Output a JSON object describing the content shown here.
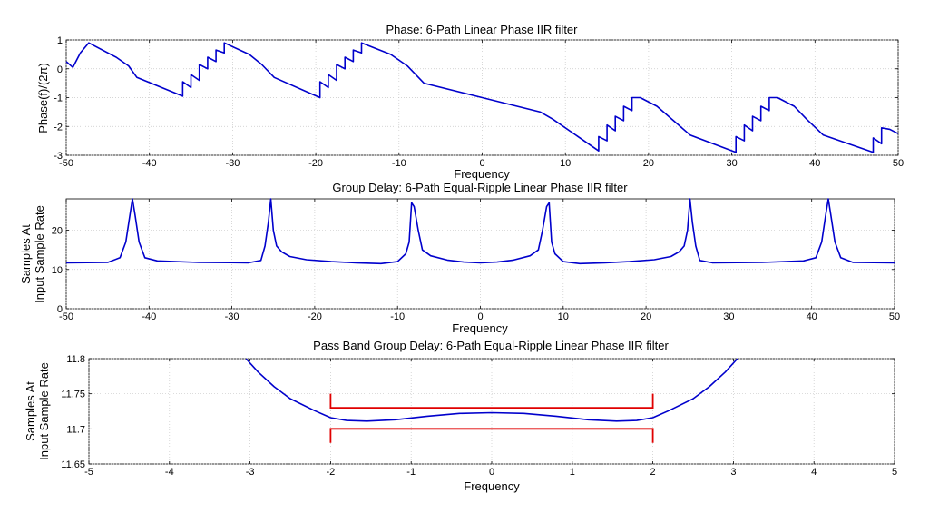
{
  "colors": {
    "curve": "#0000cc",
    "annotation": "#e00000",
    "grid": "#c8c8c8"
  },
  "chart_data": [
    {
      "type": "line",
      "title": "Phase: 6-Path Linear Phase IIR filter",
      "xlabel": "Frequency",
      "ylabel": "Phase(f)/(2π)",
      "xlim": [
        -50,
        50
      ],
      "ylim": [
        -3,
        1
      ],
      "xticks": [
        -50,
        -40,
        -30,
        -20,
        -10,
        0,
        10,
        20,
        30,
        40,
        50
      ],
      "yticks": [
        1,
        0,
        -1,
        -2,
        -3
      ],
      "grid": true,
      "series": [
        {
          "name": "phase",
          "x": [
            -50,
            -49.2,
            -48.3,
            -48.3,
            -47.3,
            -47.3,
            -44,
            -42.5,
            -41.5,
            -36,
            -36,
            -35,
            -35,
            -34,
            -34,
            -33,
            -33,
            -32,
            -32,
            -31,
            -31,
            -28,
            -26.5,
            -25,
            -19.5,
            -19.5,
            -18.5,
            -18.5,
            -17.5,
            -17.5,
            -16.5,
            -16.5,
            -15.5,
            -15.5,
            -14.5,
            -14.5,
            -11,
            -9,
            -7,
            0,
            7,
            8.5,
            14,
            14,
            15,
            15,
            16,
            16,
            17,
            17,
            18,
            18,
            19,
            19,
            21,
            23,
            25,
            30.5,
            30.5,
            31.5,
            31.5,
            32.5,
            32.5,
            33.5,
            33.5,
            34.5,
            34.5,
            35.5,
            35.5,
            37.5,
            39,
            41,
            47,
            47,
            48,
            48,
            49,
            50
          ],
          "y": [
            0.25,
            0.05,
            0.55,
            0.55,
            0.9,
            0.9,
            0.4,
            0.1,
            -0.3,
            -0.95,
            -0.45,
            -0.65,
            -0.2,
            -0.4,
            0.15,
            0.0,
            0.4,
            0.25,
            0.65,
            0.55,
            0.9,
            0.5,
            0.15,
            -0.3,
            -1.0,
            -0.45,
            -0.65,
            -0.2,
            -0.4,
            0.15,
            0.0,
            0.4,
            0.25,
            0.65,
            0.55,
            0.9,
            0.5,
            0.1,
            -0.5,
            -1.0,
            -1.5,
            -1.75,
            -2.85,
            -2.35,
            -2.5,
            -1.95,
            -2.15,
            -1.65,
            -1.8,
            -1.3,
            -1.45,
            -1.0,
            -1.0,
            -1.0,
            -1.3,
            -1.8,
            -2.3,
            -2.9,
            -2.35,
            -2.5,
            -1.95,
            -2.15,
            -1.65,
            -1.8,
            -1.3,
            -1.45,
            -1.0,
            -1.0,
            -1.0,
            -1.3,
            -1.75,
            -2.3,
            -2.9,
            -2.4,
            -2.6,
            -2.05,
            -2.1,
            -2.25
          ]
        }
      ]
    },
    {
      "type": "line",
      "title": "Group Delay: 6-Path Equal-Ripple Linear Phase IIR filter",
      "xlabel": "Frequency",
      "ylabel": [
        "Samples At",
        "Input Sample Rate"
      ],
      "xlim": [
        -50,
        50
      ],
      "ylim": [
        0,
        28
      ],
      "xticks": [
        -50,
        -40,
        -30,
        -20,
        -10,
        0,
        10,
        20,
        30,
        40,
        50
      ],
      "yticks": [
        0,
        10,
        20
      ],
      "grid": true,
      "series": [
        {
          "name": "group delay",
          "x": [
            -50,
            -45,
            -43.5,
            -42.8,
            -42.3,
            -42.0,
            -41.7,
            -41.2,
            -40.5,
            -39,
            -34,
            -28,
            -26.5,
            -26.0,
            -25.6,
            -25.3,
            -25.0,
            -24.6,
            -24.0,
            -23,
            -21,
            -18,
            -15,
            -12,
            -10,
            -9,
            -8.6,
            -8.3,
            -8.0,
            -7.5,
            -7.0,
            -6,
            -4,
            -2,
            0,
            2,
            4,
            6,
            7.0,
            7.5,
            8.0,
            8.3,
            8.6,
            9,
            10,
            12,
            15,
            18,
            21,
            23,
            24.0,
            24.6,
            25.0,
            25.3,
            25.6,
            26.0,
            26.5,
            28,
            34,
            39,
            40.5,
            41.2,
            41.7,
            42.0,
            42.3,
            42.8,
            43.5,
            45,
            50
          ],
          "y": [
            11.7,
            11.8,
            13,
            17,
            24,
            28,
            24,
            17,
            13,
            12.2,
            11.8,
            11.7,
            12.3,
            16,
            22,
            28,
            20,
            16,
            14.5,
            13.3,
            12.5,
            12.0,
            11.7,
            11.5,
            12.0,
            14,
            17,
            27,
            26,
            20,
            15,
            13.5,
            12.4,
            11.9,
            11.7,
            11.9,
            12.4,
            13.5,
            15,
            20,
            26,
            27,
            17,
            14,
            12.0,
            11.5,
            11.7,
            12.0,
            12.5,
            13.3,
            14.5,
            16,
            20,
            28,
            22,
            16,
            12.3,
            11.7,
            11.8,
            12.2,
            13,
            17,
            24,
            28,
            24,
            17,
            13,
            11.8,
            11.7
          ]
        }
      ]
    },
    {
      "type": "line",
      "title": "Pass Band Group Delay: 6-Path Equal-Ripple Linear Phase IIR filter",
      "xlabel": "Frequency",
      "ylabel": [
        "Samples At",
        "Input Sample Rate"
      ],
      "xlim": [
        -5,
        5
      ],
      "ylim": [
        11.65,
        11.8
      ],
      "xticks": [
        -5,
        -4,
        -3,
        -2,
        -1,
        0,
        1,
        2,
        3,
        4,
        5
      ],
      "yticks": [
        11.8,
        11.75,
        11.7,
        11.65
      ],
      "grid": true,
      "series": [
        {
          "name": "pass band group delay",
          "x": [
            -3.05,
            -2.9,
            -2.7,
            -2.5,
            -2.2,
            -2.0,
            -1.8,
            -1.55,
            -1.2,
            -0.8,
            -0.4,
            0,
            0.4,
            0.8,
            1.2,
            1.55,
            1.8,
            2.0,
            2.2,
            2.5,
            2.7,
            2.9,
            3.05
          ],
          "y": [
            11.8,
            11.781,
            11.76,
            11.743,
            11.726,
            11.716,
            11.712,
            11.711,
            11.713,
            11.718,
            11.722,
            11.723,
            11.722,
            11.718,
            11.713,
            11.711,
            11.712,
            11.716,
            11.726,
            11.743,
            11.76,
            11.781,
            11.8
          ]
        }
      ],
      "annotations": [
        {
          "shape": "bracket-down",
          "x": [
            -2,
            2
          ],
          "y_top": 11.75,
          "y_base": 11.73
        },
        {
          "shape": "bracket-up",
          "x": [
            -2,
            2
          ],
          "y_top": 11.7,
          "y_base": 11.68
        }
      ]
    }
  ]
}
